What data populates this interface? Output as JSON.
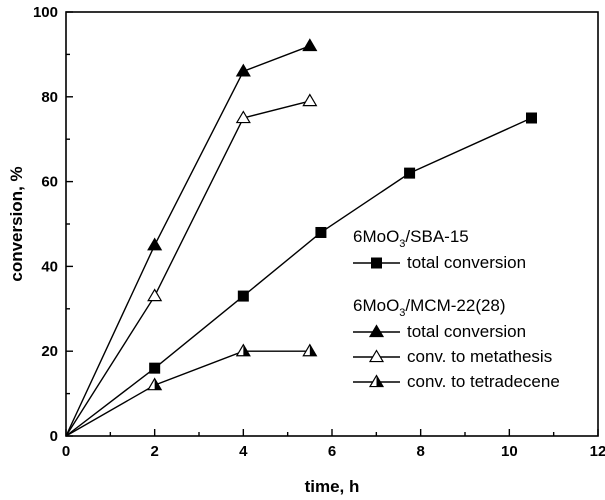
{
  "chart_data": {
    "type": "line",
    "title": "",
    "xlabel": "time, h",
    "ylabel": "conversion, %",
    "xlim": [
      0,
      12
    ],
    "ylim": [
      0,
      100
    ],
    "xticks": [
      0,
      2,
      4,
      6,
      8,
      10,
      12
    ],
    "yticks": [
      0,
      20,
      40,
      60,
      80,
      100
    ],
    "grid": false,
    "legend_groups": [
      {
        "title_main": "6MoO",
        "title_sub": "3",
        "title_rest": "/SBA-15",
        "series": [
          0
        ]
      },
      {
        "title_main": "6MoO",
        "title_sub": "3",
        "title_rest": "/MCM-22(28)",
        "series": [
          1,
          2,
          3
        ]
      }
    ],
    "series": [
      {
        "name": "total conversion",
        "catalyst": "6MoO3/SBA-15",
        "marker": "square-filled",
        "x": [
          0,
          2,
          4,
          5.75,
          7.75,
          10.5
        ],
        "y": [
          0,
          16,
          33,
          48,
          62,
          75
        ]
      },
      {
        "name": "total conversion",
        "catalyst": "6MoO3/MCM-22(28)",
        "marker": "triangle-filled",
        "x": [
          0,
          2,
          4,
          5.5
        ],
        "y": [
          0,
          45,
          86,
          92
        ]
      },
      {
        "name": "conv. to metathesis",
        "catalyst": "6MoO3/MCM-22(28)",
        "marker": "triangle-open",
        "x": [
          0,
          2,
          4,
          5.5
        ],
        "y": [
          0,
          33,
          75,
          79
        ]
      },
      {
        "name": "conv. to tetradecene",
        "catalyst": "6MoO3/MCM-22(28)",
        "marker": "triangle-half",
        "x": [
          0,
          2,
          4,
          5.5
        ],
        "y": [
          0,
          12,
          20,
          20
        ]
      }
    ]
  }
}
